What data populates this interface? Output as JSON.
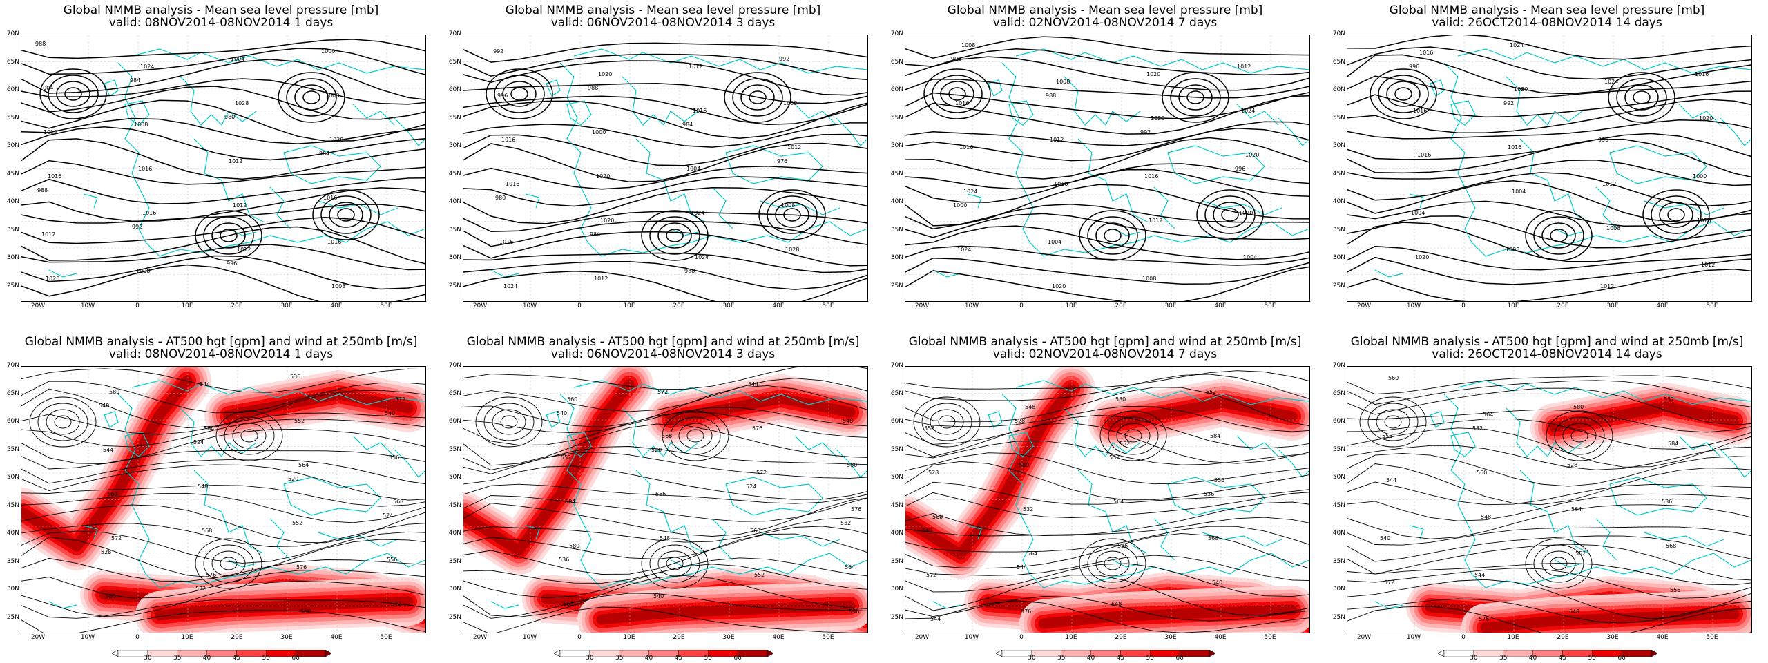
{
  "lat_labels": [
    "70N",
    "65N",
    "60N",
    "55N",
    "50N",
    "45N",
    "40N",
    "35N",
    "30N",
    "25N"
  ],
  "lon_labels": [
    "20W",
    "10W",
    "0",
    "10E",
    "20E",
    "30E",
    "40E",
    "50E"
  ],
  "colorbar_labels": [
    "30",
    "35",
    "40",
    "45",
    "50",
    "60"
  ],
  "colors": {
    "coastline": "#00cccc",
    "contour": "#000000",
    "wind_ramp": [
      "#ffd8d8",
      "#ffb0b0",
      "#ff8080",
      "#ff4040",
      "#ee0000",
      "#b00000"
    ]
  },
  "panels": [
    {
      "id": "mslp-1d",
      "title": "Global NMMB analysis - Mean sea level pressure [mb]",
      "subtitle": "valid: 08NOV2014-08NOV2014  1 days",
      "kind": "mslp",
      "labels": [
        "988",
        "984",
        "980",
        "984",
        "988",
        "992",
        "996",
        "1000",
        "1004",
        "1008",
        "1012",
        "1016",
        "1012",
        "1008",
        "1004",
        "1008",
        "1012",
        "1016",
        "1012",
        "1016",
        "1020",
        "1024",
        "1028",
        "1020",
        "1016",
        "1016",
        "1012",
        "1008"
      ]
    },
    {
      "id": "mslp-3d",
      "title": "Global NMMB analysis - Mean sea level pressure [mb]",
      "subtitle": "valid: 06NOV2014-08NOV2014  3 days",
      "kind": "mslp",
      "labels": [
        "992",
        "988",
        "984",
        "976",
        "980",
        "984",
        "988",
        "992",
        "996",
        "1000",
        "1004",
        "1008",
        "1016",
        "1012",
        "1012",
        "1008",
        "1016",
        "1020",
        "1024",
        "1028",
        "1024",
        "1020",
        "1016",
        "1012",
        "1016",
        "1020",
        "1024"
      ]
    },
    {
      "id": "mslp-7d",
      "title": "Global NMMB analysis - Mean sea level pressure [mb]",
      "subtitle": "valid: 02NOV2014-08NOV2014  7 days",
      "kind": "mslp",
      "labels": [
        "996",
        "988",
        "992",
        "996",
        "1000",
        "1004",
        "1008",
        "1012",
        "1016",
        "1012",
        "1016",
        "1020",
        "1024",
        "1020",
        "1020",
        "1024",
        "1016",
        "1016",
        "1012",
        "1004",
        "1008",
        "1008",
        "1020",
        "1020",
        "1024"
      ]
    },
    {
      "id": "mslp-14d",
      "title": "Global NMMB analysis - Mean sea level pressure [mb]",
      "subtitle": "valid: 26OCT2014-08NOV2014  14 days",
      "kind": "mslp",
      "labels": [
        "996",
        "992",
        "996",
        "1000",
        "1004",
        "1008",
        "1012",
        "1016",
        "1016",
        "1016",
        "1012",
        "1016",
        "1020",
        "1024",
        "1024",
        "1020",
        "1016",
        "1004",
        "1008",
        "1012",
        "1016",
        "1020"
      ]
    },
    {
      "id": "at500-1d",
      "title": "Global NMMB analysis - AT500 hgt [gpm] and wind at 250mb [m/s]",
      "subtitle": "valid: 08NOV2014-08NOV2014  1 days",
      "kind": "at500",
      "labels": [
        "548",
        "524",
        "520",
        "524",
        "528",
        "532",
        "536",
        "540",
        "544",
        "548",
        "552",
        "556",
        "560",
        "544",
        "552",
        "556",
        "560",
        "568",
        "576",
        "572",
        "580",
        "584",
        "564",
        "568",
        "572",
        "576",
        "580",
        "572"
      ]
    },
    {
      "id": "at500-3d",
      "title": "Global NMMB analysis - AT500 hgt [gpm] and wind at 250mb [m/s]",
      "subtitle": "valid: 06NOV2014-08NOV2014  3 days",
      "kind": "at500",
      "labels": [
        "540",
        "520",
        "524",
        "532",
        "536",
        "540",
        "544",
        "548",
        "552",
        "556",
        "560",
        "564",
        "568",
        "572",
        "576",
        "580",
        "584",
        "548",
        "552",
        "556",
        "560",
        "568",
        "572",
        "576",
        "580"
      ]
    },
    {
      "id": "at500-7d",
      "title": "Global NMMB analysis - AT500 hgt [gpm] and wind at 250mb [m/s]",
      "subtitle": "valid: 02NOV2014-08NOV2014  7 days",
      "kind": "at500",
      "labels": [
        "528",
        "532",
        "536",
        "540",
        "544",
        "548",
        "552",
        "556",
        "560",
        "564",
        "568",
        "572",
        "576",
        "580",
        "584",
        "528",
        "532",
        "536",
        "540",
        "544",
        "548",
        "552",
        "556",
        "560",
        "564"
      ]
    },
    {
      "id": "at500-14d",
      "title": "Global NMMB analysis - AT500 hgt [gpm] and wind at 250mb [m/s]",
      "subtitle": "valid: 26OCT2014-08NOV2014  14 days",
      "kind": "at500",
      "labels": [
        "532",
        "528",
        "536",
        "540",
        "544",
        "548",
        "552",
        "556",
        "560",
        "564",
        "568",
        "572",
        "576",
        "580",
        "584",
        "544",
        "548",
        "552",
        "556",
        "560",
        "564"
      ]
    }
  ]
}
